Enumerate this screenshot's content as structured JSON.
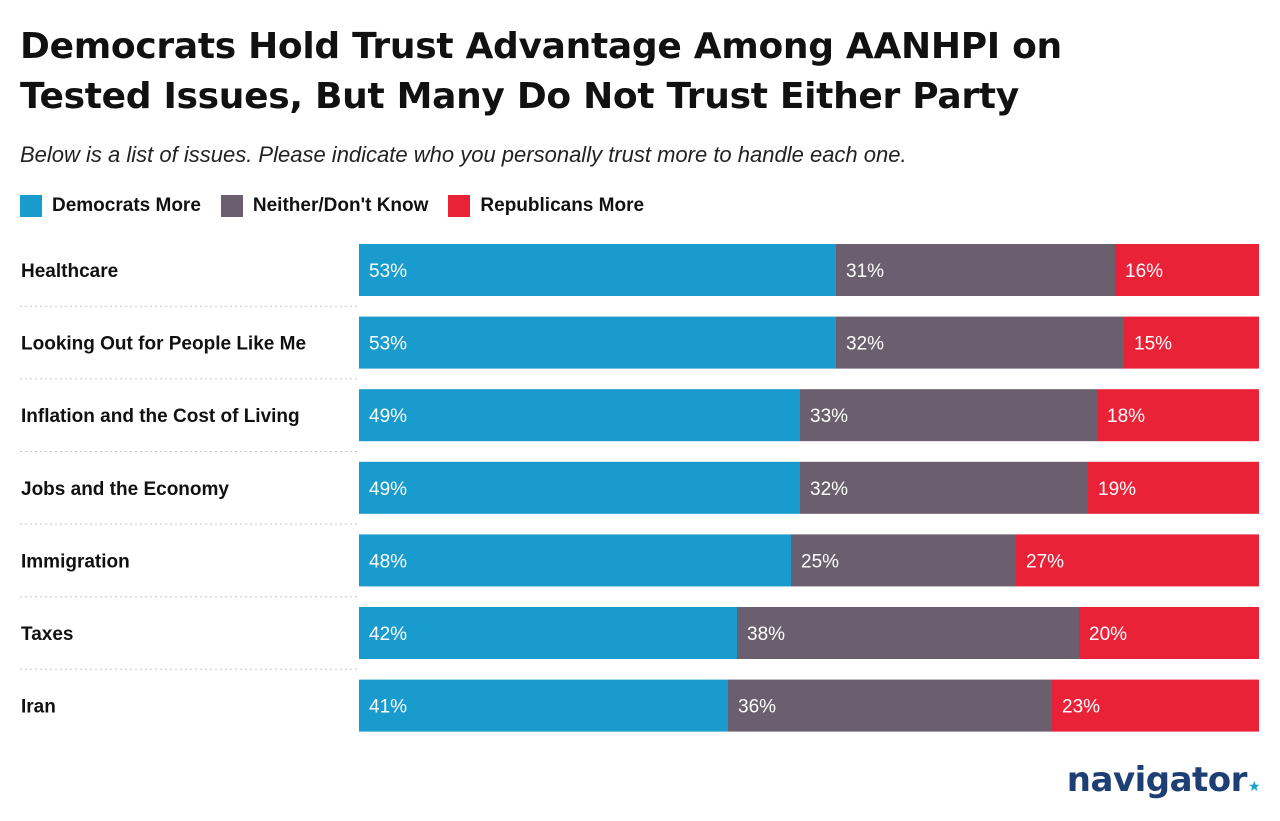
{
  "header": {
    "title_line1": "Democrats Hold Trust Advantage Among AANHPI on",
    "title_line2": "Tested Issues, But Many Do Not Trust Either Party",
    "subtitle": "Below is a list of issues. Please indicate who you personally trust more to handle each one."
  },
  "brand": {
    "logo_text": "navigator",
    "logo_mark": "★"
  },
  "colors": {
    "democrats": "#1a9bcd",
    "neither": "#6b5e6e",
    "republicans": "#ea2237"
  },
  "chart_data": {
    "type": "bar",
    "orientation": "horizontal",
    "stacked": true,
    "normalized_to": 100,
    "legend_placement": "top-left",
    "categories": [
      "Healthcare",
      "Looking Out for People Like Me",
      "Inflation and the Cost of Living",
      "Jobs and the Economy",
      "Immigration",
      "Taxes",
      "Iran"
    ],
    "series": [
      {
        "name": "Democrats More",
        "color": "#1a9bcd",
        "values": [
          53,
          53,
          49,
          49,
          48,
          42,
          41
        ],
        "labels": [
          "53%",
          "53%",
          "49%",
          "49%",
          "48%",
          "42%",
          "41%"
        ]
      },
      {
        "name": "Neither/Don't Know",
        "color": "#6b5e6e",
        "values": [
          31,
          32,
          33,
          32,
          25,
          38,
          36
        ],
        "labels": [
          "31%",
          "32%",
          "33%",
          "32%",
          "25%",
          "38%",
          "36%"
        ]
      },
      {
        "name": "Republicans More",
        "color": "#ea2237",
        "values": [
          16,
          15,
          18,
          19,
          27,
          20,
          23
        ],
        "labels": [
          "16%",
          "15%",
          "18%",
          "19%",
          "27%",
          "20%",
          "23%"
        ]
      }
    ]
  }
}
